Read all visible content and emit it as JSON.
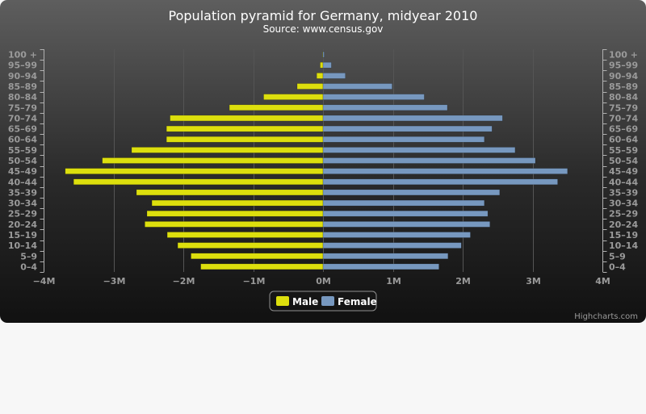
{
  "chart_data": {
    "type": "bar",
    "orientation": "horizontal",
    "title": "Population pyramid for Germany, midyear 2010",
    "subtitle": "Source: www.census.gov",
    "categories": [
      "0-4",
      "5-9",
      "10-14",
      "15-19",
      "20-24",
      "25-29",
      "30-34",
      "35-39",
      "40-44",
      "45-49",
      "50-54",
      "55-59",
      "60-64",
      "65-69",
      "70-74",
      "75-79",
      "80-84",
      "85-89",
      "90-94",
      "95-99",
      "100 +"
    ],
    "series": [
      {
        "name": "Male",
        "color": "#dddf0d",
        "values": [
          -1.75,
          -1.89,
          -2.08,
          -2.23,
          -2.55,
          -2.52,
          -2.45,
          -2.67,
          -3.57,
          -3.69,
          -3.16,
          -2.74,
          -2.24,
          -2.24,
          -2.19,
          -1.34,
          -0.85,
          -0.37,
          -0.09,
          -0.04,
          -0.005
        ]
      },
      {
        "name": "Female",
        "color": "#7798bf",
        "values": [
          1.66,
          1.79,
          1.98,
          2.11,
          2.39,
          2.36,
          2.31,
          2.53,
          3.36,
          3.5,
          3.04,
          2.75,
          2.31,
          2.42,
          2.57,
          1.78,
          1.45,
          0.99,
          0.32,
          0.12,
          0.01
        ]
      }
    ],
    "value_unit": "millions",
    "x_ticks": [
      "−4M",
      "−3M",
      "−2M",
      "−1M",
      "0M",
      "1M",
      "2M",
      "3M",
      "4M"
    ],
    "xlim": [
      -4,
      4
    ],
    "grid": true,
    "legend_position": "bottom-center",
    "credits": "Highcharts.com"
  },
  "theme": {
    "background_top": "#5f5f5f",
    "background_bottom": "#121212",
    "grid_color": "#555555",
    "axis_color": "#b0b0b0"
  }
}
